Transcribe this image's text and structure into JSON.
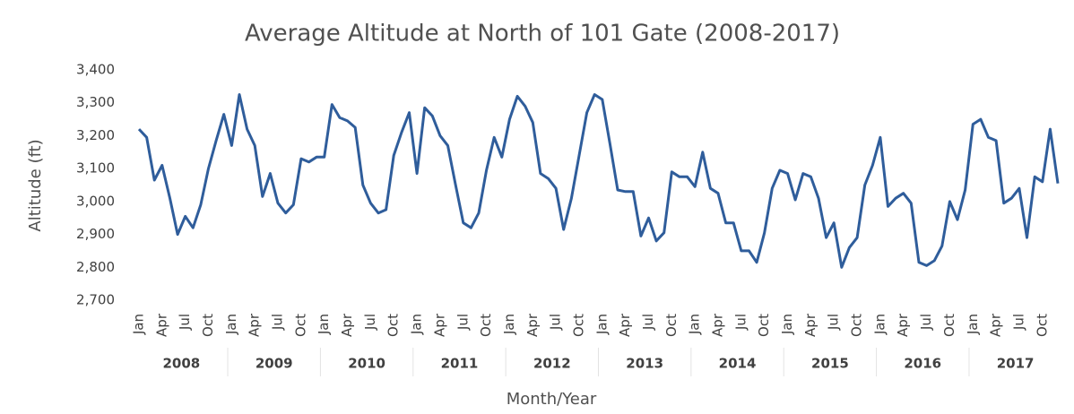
{
  "chart_data": {
    "type": "line",
    "title": "Average Altitude at North of 101 Gate (2008-2017)",
    "x_label": "Month/Year",
    "y_label": "Altitude (ft)",
    "categories": [
      "Jan",
      null,
      null,
      "Apr",
      null,
      null,
      "Jul",
      null,
      null,
      "Oct",
      null,
      null,
      "Jan",
      null,
      null,
      "Apr",
      null,
      null,
      "Jul",
      null,
      null,
      "Oct",
      null,
      null,
      "Jan",
      null,
      null,
      "Apr",
      null,
      null,
      "Jul",
      null,
      null,
      "Oct",
      null,
      null,
      "Jan",
      null,
      null,
      "Apr",
      null,
      null,
      "Jul",
      null,
      null,
      "Oct",
      null,
      null,
      "Jan",
      null,
      null,
      "Apr",
      null,
      null,
      "Jul",
      null,
      null,
      "Oct",
      null,
      null,
      "Jan",
      null,
      null,
      "Apr",
      null,
      null,
      "Jul",
      null,
      null,
      "Oct",
      null,
      null,
      "Jan",
      null,
      null,
      "Apr",
      null,
      null,
      "Jul",
      null,
      null,
      "Oct",
      null,
      null,
      "Jan",
      null,
      null,
      "Apr",
      null,
      null,
      "Jul",
      null,
      null,
      "Oct",
      null,
      null,
      "Jan",
      null,
      null,
      "Apr",
      null,
      null,
      "Jul",
      null,
      null,
      "Oct",
      null,
      null,
      "Jan",
      null,
      null,
      "Apr",
      null,
      null,
      "Jul",
      null,
      null,
      "Oct",
      null,
      null
    ],
    "years": [
      "2008",
      "2009",
      "2010",
      "2011",
      "2012",
      "2013",
      "2014",
      "2015",
      "2016",
      "2017"
    ],
    "series": [
      {
        "name": "Altitude",
        "color": "#2f5d9b",
        "values": [
          3220,
          3195,
          3065,
          3110,
          3010,
          2900,
          2955,
          2920,
          2990,
          3100,
          3185,
          3265,
          3170,
          3325,
          3220,
          3170,
          3015,
          3085,
          2995,
          2965,
          2990,
          3130,
          3120,
          3135,
          3135,
          3295,
          3255,
          3245,
          3225,
          3050,
          2995,
          2965,
          2975,
          3140,
          3210,
          3270,
          3085,
          3285,
          3260,
          3200,
          3170,
          3050,
          2935,
          2920,
          2965,
          3095,
          3195,
          3135,
          3250,
          3320,
          3290,
          3240,
          3085,
          3070,
          3040,
          2915,
          3010,
          3140,
          3270,
          3325,
          3310,
          3175,
          3035,
          3030,
          3030,
          2895,
          2950,
          2880,
          2905,
          3090,
          3075,
          3075,
          3045,
          3150,
          3040,
          3025,
          2935,
          2935,
          2850,
          2850,
          2815,
          2905,
          3040,
          3095,
          3085,
          3005,
          3085,
          3075,
          3010,
          2890,
          2935,
          2800,
          2860,
          2890,
          3050,
          3110,
          3195,
          2985,
          3010,
          3025,
          2995,
          2815,
          2805,
          2820,
          2865,
          3000,
          2945,
          3035,
          3235,
          3250,
          3195,
          3185,
          2995,
          3010,
          3040,
          2890,
          3075,
          3060,
          3220,
          3055
        ]
      }
    ],
    "ylim": [
      2700,
      3400
    ],
    "yticks": [
      {
        "value": 2700,
        "label": "2,700"
      },
      {
        "value": 2800,
        "label": "2,800"
      },
      {
        "value": 2900,
        "label": "2,900"
      },
      {
        "value": 3000,
        "label": "3,000"
      },
      {
        "value": 3100,
        "label": "3,100"
      },
      {
        "value": 3200,
        "label": "3,200"
      },
      {
        "value": 3300,
        "label": "3,300"
      },
      {
        "value": 3400,
        "label": "3,400"
      }
    ],
    "grid": false
  }
}
